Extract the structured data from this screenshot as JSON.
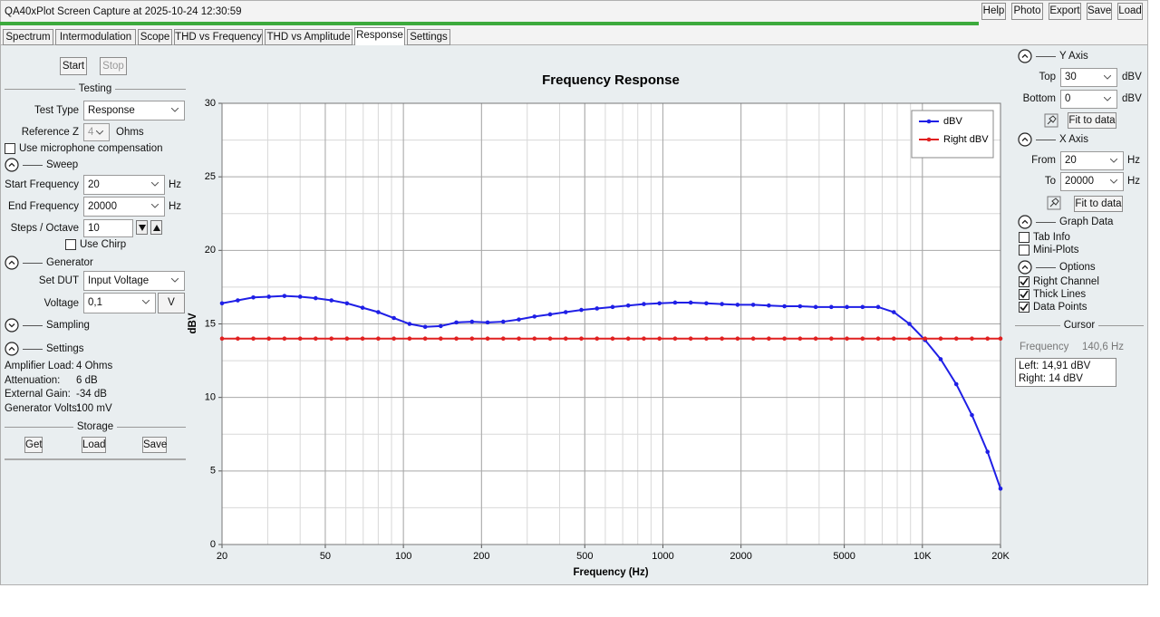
{
  "window": {
    "title": "QA40xPlot Screen Capture at 2025-10-24 12:30:59",
    "buttons": [
      "Help",
      "Photo",
      "Export",
      "Save",
      "Load"
    ]
  },
  "tabs": [
    "Spectrum",
    "Intermodulation",
    "Scope",
    "THD vs Frequency",
    "THD vs Amplitude",
    "Response",
    "Settings"
  ],
  "left_panel": {
    "start": "Start",
    "stop": "Stop",
    "testing": "Testing",
    "test_type_label": "Test Type",
    "test_type": "Response",
    "reference_z_label": "Reference Z",
    "reference_z": "4",
    "reference_z_unit": "Ohms",
    "mic_compensation": "Use microphone compensation",
    "sweep": "Sweep",
    "start_frequency_label": "Start Frequency",
    "start_frequency": "20",
    "start_frequency_unit": "Hz",
    "end_frequency_label": "End Frequency",
    "end_frequency": "20000",
    "end_frequency_unit": "Hz",
    "steps_label": "Steps / Octave",
    "steps": "10",
    "use_chirp": "Use Chirp",
    "generator": "Generator",
    "set_dut_label": "Set DUT",
    "set_dut": "Input Voltage",
    "voltage_label": "Voltage",
    "voltage": "0,1",
    "voltage_unit": "V",
    "sampling": "Sampling",
    "settings": "Settings",
    "info": [
      [
        "Amplifier Load:",
        "4 Ohms"
      ],
      [
        "Attenuation:",
        "6 dB"
      ],
      [
        "External Gain:",
        "-34 dB"
      ],
      [
        "Generator Volts:",
        "100 mV"
      ]
    ],
    "storage": "Storage",
    "storage_buttons": [
      "Get",
      "Load",
      "Save"
    ]
  },
  "right_panel": {
    "y_axis": "Y Axis",
    "top_label": "Top",
    "top": "30",
    "top_unit": "dBV",
    "bottom_label": "Bottom",
    "bottom": "0",
    "bottom_unit": "dBV",
    "y_fit": "Fit to data",
    "x_axis": "X Axis",
    "from_label": "From",
    "from": "20",
    "from_unit": "Hz",
    "to_label": "To",
    "to": "20000",
    "to_unit": "Hz",
    "x_fit": "Fit to data",
    "graph_data": "Graph Data",
    "tab_info": "Tab Info",
    "mini_plots": "Mini-Plots",
    "options": "Options",
    "right_channel": "Right Channel",
    "thick_lines": "Thick Lines",
    "data_points": "Data Points",
    "cursor": "Cursor",
    "frequency_label": "Frequency",
    "frequency": "140,6 Hz",
    "left_value": "Left: 14,91 dBV",
    "right_value": "Right: 14 dBV"
  },
  "chart_data": {
    "type": "line",
    "title": "Frequency Response",
    "xlabel": "Frequency (Hz)",
    "ylabel": "dBV",
    "xscale": "log",
    "grid": true,
    "legend": "upper right",
    "xlim": [
      20,
      20000
    ],
    "ylim": [
      0,
      30
    ],
    "xticks": [
      20,
      50,
      100,
      200,
      500,
      1000,
      2000,
      5000,
      {
        "value": 10000,
        "label": "10K"
      },
      {
        "value": 20000,
        "label": "20K"
      }
    ],
    "yticks": [
      0,
      5,
      10,
      15,
      20,
      25,
      30
    ],
    "x": [
      20,
      23,
      26.4,
      30.3,
      34.8,
      40,
      45.9,
      52.8,
      60.6,
      69.6,
      80,
      91.9,
      105.6,
      121.3,
      139.3,
      160,
      183.8,
      211.1,
      242.5,
      278.6,
      320,
      367.6,
      422.2,
      485,
      557.2,
      640,
      735.2,
      844.5,
      970.1,
      1114.3,
      1280,
      1470.3,
      1689,
      1940.1,
      2228.7,
      2560,
      2940.7,
      3377.9,
      3880.3,
      4457.3,
      5120,
      5881.4,
      6755.9,
      7760.6,
      8914.6,
      10240,
      11762.7,
      13511.9,
      15521.3,
      17829.1,
      20000
    ],
    "series": [
      {
        "name": "dBV",
        "color": "#1f1fe6",
        "values": [
          16.4,
          16.6,
          16.8,
          16.85,
          16.9,
          16.85,
          16.75,
          16.6,
          16.4,
          16.1,
          15.8,
          15.4,
          15.0,
          14.8,
          14.85,
          15.1,
          15.15,
          15.1,
          15.15,
          15.3,
          15.5,
          15.65,
          15.8,
          15.95,
          16.05,
          16.15,
          16.25,
          16.35,
          16.4,
          16.45,
          16.45,
          16.4,
          16.35,
          16.3,
          16.3,
          16.25,
          16.2,
          16.2,
          16.15,
          16.15,
          16.15,
          16.15,
          16.15,
          15.8,
          15.0,
          13.9,
          12.6,
          10.9,
          8.8,
          6.3,
          3.8
        ]
      },
      {
        "name": "Right dBV",
        "color": "#e02020",
        "values": [
          14,
          14,
          14,
          14,
          14,
          14,
          14,
          14,
          14,
          14,
          14,
          14,
          14,
          14,
          14,
          14,
          14,
          14,
          14,
          14,
          14,
          14,
          14,
          14,
          14,
          14,
          14,
          14,
          14,
          14,
          14,
          14,
          14,
          14,
          14,
          14,
          14,
          14,
          14,
          14,
          14,
          14,
          14,
          14,
          14,
          14,
          14,
          14,
          14,
          14,
          14
        ]
      }
    ]
  }
}
